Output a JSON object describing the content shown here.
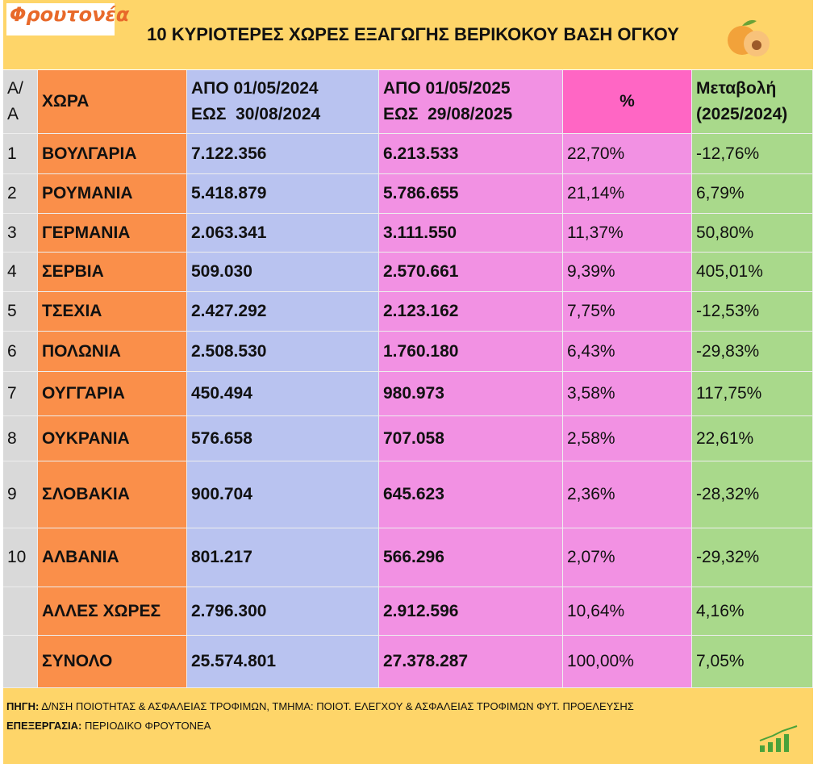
{
  "header": {
    "logo": "Φρουτονέα",
    "title": "10 ΚΥΡΙΟΤΕΡΕΣ ΧΩΡΕΣ ΕΞΑΓΩΓΗΣ ΒΕΡΙΚΟΚΟΥ ΒΑΣΗ ΟΓΚΟΥ"
  },
  "table": {
    "columns": [
      [
        "Α/",
        "Α"
      ],
      [
        "ΧΩΡΑ"
      ],
      [
        "ΑΠΟ 01/05/2024",
        "ΕΩΣ  30/08/2024"
      ],
      [
        "ΑΠΟ 01/05/2025",
        "ΕΩΣ  29/08/2025"
      ],
      [
        "%"
      ],
      [
        "Μεταβολή",
        "(2025/2024)"
      ]
    ],
    "rows": [
      [
        "1",
        "ΒΟΥΛΓΑΡΙΑ",
        "7.122.356",
        "6.213.533",
        "22,70%",
        "-12,76%"
      ],
      [
        "2",
        "ΡΟΥΜΑΝΙΑ",
        "5.418.879",
        "5.786.655",
        "21,14%",
        "6,79%"
      ],
      [
        "3",
        "ΓΕΡΜΑΝΙΑ",
        "2.063.341",
        "3.111.550",
        "11,37%",
        "50,80%"
      ],
      [
        "4",
        "ΣΕΡΒΙΑ",
        "509.030",
        "2.570.661",
        "9,39%",
        "405,01%"
      ],
      [
        "5",
        "ΤΣΕΧΙΑ",
        "2.427.292",
        "2.123.162",
        "7,75%",
        "-12,53%"
      ],
      [
        "6",
        "ΠΟΛΩΝΙΑ",
        "2.508.530",
        "1.760.180",
        "6,43%",
        "-29,83%"
      ],
      [
        "7",
        "ΟΥΓΓΑΡΙΑ",
        "450.494",
        "980.973",
        "3,58%",
        "117,75%"
      ],
      [
        "8",
        "ΟΥΚΡΑΝΙΑ",
        "576.658",
        "707.058",
        "2,58%",
        "22,61%"
      ],
      [
        "9",
        "ΣΛΟΒΑΚΙΑ",
        "900.704",
        "645.623",
        "2,36%",
        "-28,32%"
      ],
      [
        "10",
        "ΑΛΒΑΝΙΑ",
        "801.217",
        "566.296",
        "2,07%",
        "-29,32%"
      ],
      [
        null,
        "ΑΛΛΕΣ ΧΩΡΕΣ",
        "2.796.300",
        "2.912.596",
        "10,64%",
        "4,16%"
      ],
      [
        null,
        "ΣΥΝΟΛΟ",
        "25.574.801",
        "27.378.287",
        "100,00%",
        "7,05%"
      ]
    ]
  },
  "footer": [
    {
      "label": "ΠΗΓΗ:",
      "text": " Δ/ΝΣΗ ΠΟΙΟΤΗΤΑΣ & ΑΣΦΑΛΕΙΑΣ ΤΡΟΦΙΜΩΝ, ΤΜΗΜΑ: ΠΟΙΟΤ. ΕΛΕΓΧΟΥ & ΑΣΦΑΛΕΙΑΣ ΤΡΟΦΙΜΩΝ ΦΥΤ. ΠΡΟΕΛΕΥΣΗΣ"
    },
    {
      "label": "ΕΠΕΞΕΡΓΑΣΙΑ:",
      "text": " ΠΕΡΙΟΔΙΚΟ ΦΡΟΥΤΟΝΕΑ"
    }
  ]
}
